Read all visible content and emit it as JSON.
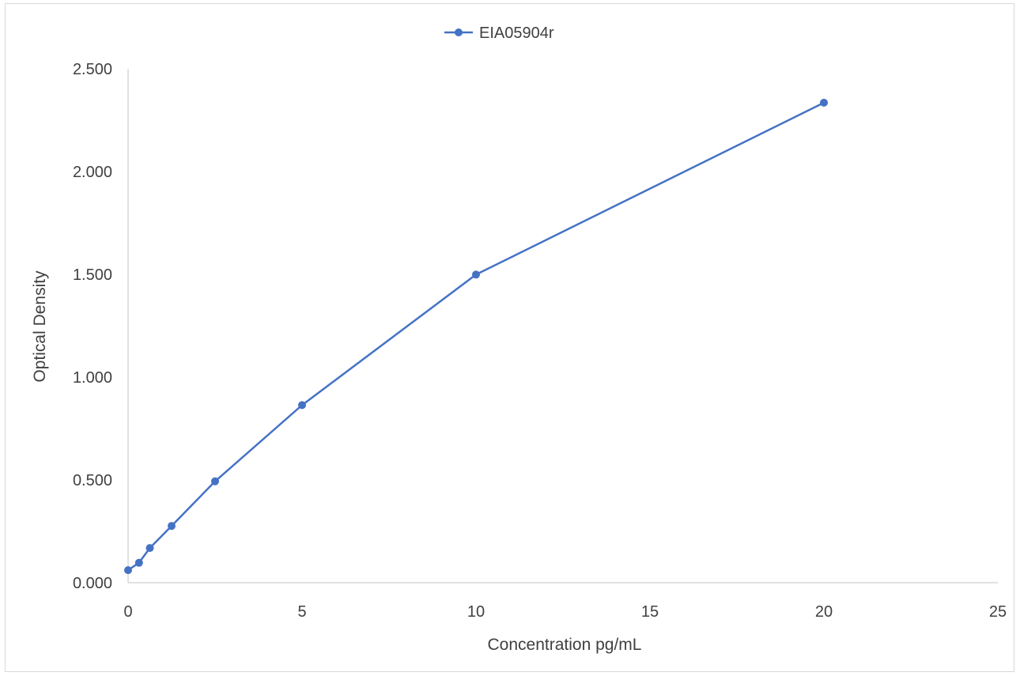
{
  "chart_data": {
    "type": "scatter",
    "title": "",
    "xlabel": "Concentration pg/mL",
    "ylabel": "Optical Density",
    "xlim": [
      0,
      25
    ],
    "ylim": [
      0,
      2.5
    ],
    "x_ticks": [
      "0",
      "5",
      "10",
      "15",
      "20",
      "25"
    ],
    "y_ticks": [
      "0.000",
      "0.500",
      "1.000",
      "1.500",
      "2.000",
      "2.500"
    ],
    "grid": false,
    "legend": "top-center",
    "series": [
      {
        "name": "EIA05904r",
        "color": "#4472c4",
        "x": [
          0,
          0.313,
          0.625,
          1.25,
          2.5,
          5,
          10,
          20
        ],
        "y": [
          0.061,
          0.097,
          0.169,
          0.276,
          0.493,
          0.864,
          1.499,
          2.335
        ]
      }
    ]
  }
}
